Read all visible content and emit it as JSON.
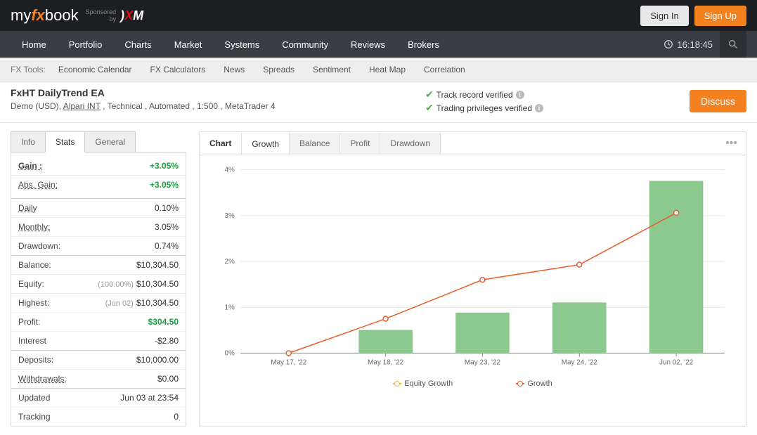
{
  "header": {
    "logo": {
      "my": "my",
      "fx": "fx",
      "book": "book"
    },
    "sponsored_label": "Sponsored",
    "sponsored_by": "by",
    "sponsor": "XM",
    "signin": "Sign In",
    "signup": "Sign Up"
  },
  "nav": {
    "items": [
      "Home",
      "Portfolio",
      "Charts",
      "Market",
      "Systems",
      "Community",
      "Reviews",
      "Brokers"
    ],
    "time": "16:18:45"
  },
  "fxtools": {
    "label": "FX Tools:",
    "items": [
      "Economic Calendar",
      "FX Calculators",
      "News",
      "Spreads",
      "Sentiment",
      "Heat Map",
      "Correlation"
    ]
  },
  "system": {
    "title": "FxHT DailyTrend EA",
    "meta_prefix": "Demo (USD), ",
    "meta_link": "Alpari INT",
    "meta_suffix": " , Technical , Automated , 1:500 , MetaTrader 4",
    "verified1": "Track record verified",
    "verified2": "Trading privileges verified",
    "discuss": "Discuss"
  },
  "stats_tabs": {
    "info": "Info",
    "stats": "Stats",
    "general": "General"
  },
  "stats": {
    "gain_label": "Gain :",
    "gain_value": "+3.05%",
    "absgain_label": "Abs. Gain:",
    "absgain_value": "+3.05%",
    "daily_label": "Daily",
    "daily_value": "0.10%",
    "monthly_label": "Monthly:",
    "monthly_value": "3.05%",
    "drawdown_label": "Drawdown:",
    "drawdown_value": "0.74%",
    "balance_label": "Balance:",
    "balance_value": "$10,304.50",
    "equity_label": "Equity:",
    "equity_sub": "(100.00%)",
    "equity_value": "$10,304.50",
    "highest_label": "Highest:",
    "highest_sub": "(Jun 02)",
    "highest_value": "$10,304.50",
    "profit_label": "Profit:",
    "profit_value": "$304.50",
    "interest_label": "Interest",
    "interest_value": "-$2.80",
    "deposits_label": "Deposits:",
    "deposits_value": "$10,000.00",
    "withdrawals_label": "Withdrawals:",
    "withdrawals_value": "$0.00",
    "updated_label": "Updated",
    "updated_value": "Jun 03 at 23:54",
    "tracking_label": "Tracking",
    "tracking_value": "0"
  },
  "chart_tabs": {
    "chart": "Chart",
    "growth": "Growth",
    "balance": "Balance",
    "profit": "Profit",
    "drawdown": "Drawdown"
  },
  "chart": {
    "type": "bar+line",
    "categories": [
      "May 17, '22",
      "May 18, '22",
      "May 23, '22",
      "May 24, '22",
      "Jun 02, '22"
    ],
    "bar_values": [
      0,
      0.5,
      0.88,
      1.1,
      3.75
    ],
    "line_values": [
      0,
      0.75,
      1.6,
      1.93,
      3.06
    ],
    "bar_color": "#8bc98f",
    "line_color": "#e85d2a",
    "marker_fill": "#ffffff",
    "ylim": [
      0,
      4
    ],
    "ytick_step": 1,
    "yticks": [
      "0%",
      "1%",
      "2%",
      "3%",
      "4%"
    ],
    "grid_color": "#e5e5e5",
    "axis_color": "#888",
    "background": "#ffffff",
    "label_color": "#666",
    "label_fontsize": 10,
    "legend": {
      "equity": "Equity Growth",
      "growth": "Growth"
    },
    "legend_equity_color": "#f5b947",
    "legend_growth_color": "#e85d2a"
  }
}
